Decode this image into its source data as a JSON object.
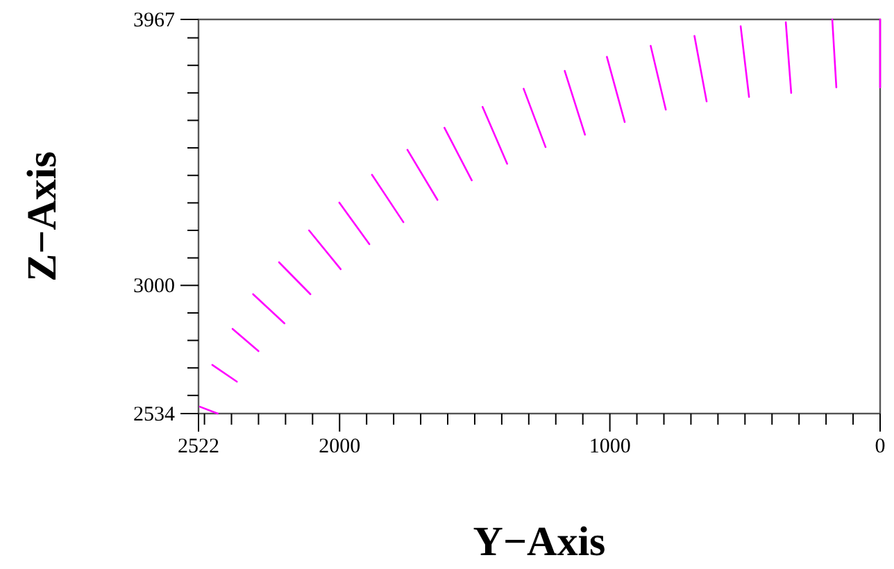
{
  "chart_data": {
    "type": "line",
    "xlabel": "Y−Axis",
    "ylabel": "Z−Axis",
    "xlim": [
      2522,
      0
    ],
    "ylim": [
      2534,
      3967
    ],
    "xticks": [
      2522,
      {
        "value": 2500,
        "label": null
      },
      {
        "value": 2400,
        "label": null
      },
      {
        "value": 2300,
        "label": null
      },
      {
        "value": 2200,
        "label": null
      },
      {
        "value": 2100,
        "label": null
      },
      2000,
      {
        "value": 1900,
        "label": null
      },
      {
        "value": 1800,
        "label": null
      },
      {
        "value": 1700,
        "label": null
      },
      {
        "value": 1600,
        "label": null
      },
      {
        "value": 1500,
        "label": null
      },
      {
        "value": 1400,
        "label": null
      },
      {
        "value": 1300,
        "label": null
      },
      {
        "value": 1200,
        "label": null
      },
      {
        "value": 1100,
        "label": null
      },
      1000,
      {
        "value": 900,
        "label": null
      },
      {
        "value": 800,
        "label": null
      },
      {
        "value": 700,
        "label": null
      },
      {
        "value": 600,
        "label": null
      },
      {
        "value": 500,
        "label": null
      },
      {
        "value": 400,
        "label": null
      },
      {
        "value": 300,
        "label": null
      },
      {
        "value": 200,
        "label": null
      },
      {
        "value": 100,
        "label": null
      },
      0
    ],
    "yticks": [
      2534,
      {
        "value": 2600,
        "label": null
      },
      {
        "value": 2700,
        "label": null
      },
      {
        "value": 2800,
        "label": null
      },
      {
        "value": 2900,
        "label": null
      },
      3000,
      {
        "value": 3100,
        "label": null
      },
      {
        "value": 3200,
        "label": null
      },
      {
        "value": 3300,
        "label": null
      },
      {
        "value": 3400,
        "label": null
      },
      {
        "value": 3500,
        "label": null
      },
      {
        "value": 3600,
        "label": null
      },
      {
        "value": 3700,
        "label": null
      },
      {
        "value": 3800,
        "label": null
      },
      {
        "value": 3900,
        "label": null
      },
      3967
    ],
    "grid": false,
    "marker": "none",
    "line_style": "solid",
    "series": [
      {
        "color": "#ff00ff",
        "x": [
          2517,
          2451
        ],
        "values": [
          2559,
          2534
        ]
      },
      {
        "color": "#ff00ff",
        "x": [
          2471,
          2380
        ],
        "values": [
          2711,
          2650
        ]
      },
      {
        "color": "#ff00ff",
        "x": [
          2396,
          2300
        ],
        "values": [
          2842,
          2761
        ]
      },
      {
        "color": "#ff00ff",
        "x": [
          2320,
          2204
        ],
        "values": [
          2968,
          2862
        ]
      },
      {
        "color": "#ff00ff",
        "x": [
          2224,
          2108
        ],
        "values": [
          3084,
          2968
        ]
      },
      {
        "color": "#ff00ff",
        "x": [
          2113,
          1996
        ],
        "values": [
          3200,
          3059
        ]
      },
      {
        "color": "#ff00ff",
        "x": [
          2001,
          1890
        ],
        "values": [
          3301,
          3150
        ]
      },
      {
        "color": "#ff00ff",
        "x": [
          1880,
          1764
        ],
        "values": [
          3402,
          3230
        ]
      },
      {
        "color": "#ff00ff",
        "x": [
          1749,
          1638
        ],
        "values": [
          3493,
          3311
        ]
      },
      {
        "color": "#ff00ff",
        "x": [
          1612,
          1511
        ],
        "values": [
          3573,
          3382
        ]
      },
      {
        "color": "#ff00ff",
        "x": [
          1471,
          1380
        ],
        "values": [
          3649,
          3442
        ]
      },
      {
        "color": "#ff00ff",
        "x": [
          1319,
          1238
        ],
        "values": [
          3715,
          3503
        ]
      },
      {
        "color": "#ff00ff",
        "x": [
          1167,
          1092
        ],
        "values": [
          3780,
          3548
        ]
      },
      {
        "color": "#ff00ff",
        "x": [
          1011,
          945
        ],
        "values": [
          3831,
          3594
        ]
      },
      {
        "color": "#ff00ff",
        "x": [
          849,
          793
        ],
        "values": [
          3871,
          3639
        ]
      },
      {
        "color": "#ff00ff",
        "x": [
          687,
          642
        ],
        "values": [
          3907,
          3669
        ]
      },
      {
        "color": "#ff00ff",
        "x": [
          516,
          485
        ],
        "values": [
          3942,
          3685
        ]
      },
      {
        "color": "#ff00ff",
        "x": [
          349,
          329
        ],
        "values": [
          3957,
          3700
        ]
      },
      {
        "color": "#ff00ff",
        "x": [
          177,
          162
        ],
        "values": [
          3967,
          3720
        ]
      },
      {
        "color": "#ff00ff",
        "x": [
          0,
          0
        ],
        "values": [
          3967,
          3720
        ]
      }
    ]
  }
}
